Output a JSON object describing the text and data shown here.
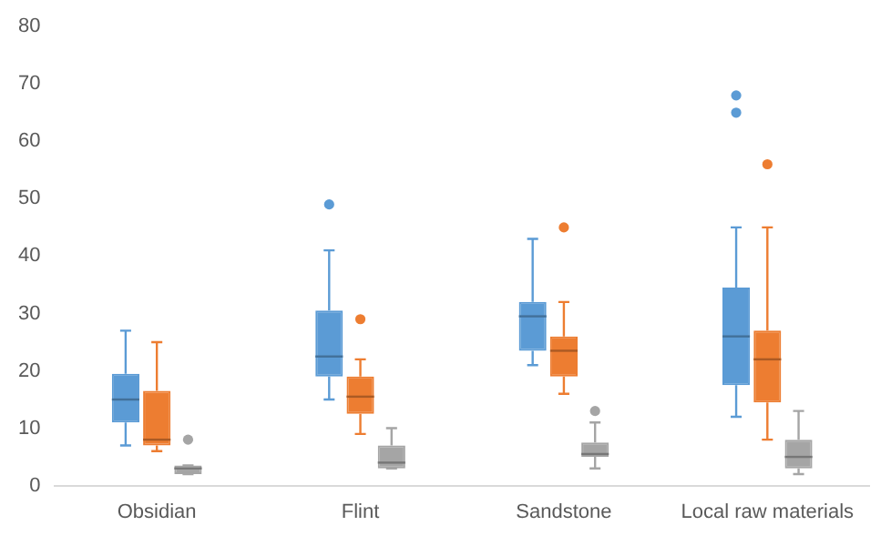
{
  "chart_data": {
    "type": "box",
    "categories": [
      "Obsidian",
      "Flint",
      "Sandstone",
      "Local raw materials"
    ],
    "series": [
      {
        "color": "#5b9bd5",
        "boxes": [
          {
            "low": 7,
            "q1": 11,
            "median": 15,
            "q3": 19.5,
            "high": 27
          },
          {
            "low": 15,
            "q1": 19,
            "median": 22.5,
            "q3": 30.5,
            "high": 41,
            "outliers": [
              49
            ]
          },
          {
            "low": 21,
            "q1": 23.5,
            "median": 29.5,
            "q3": 32,
            "high": 43
          },
          {
            "low": 12,
            "q1": 17.5,
            "median": 26,
            "q3": 34.5,
            "high": 45,
            "outliers": [
              65,
              68
            ]
          }
        ]
      },
      {
        "color": "#ed7d31",
        "boxes": [
          {
            "low": 6,
            "q1": 7,
            "median": 8,
            "q3": 16.5,
            "high": 25
          },
          {
            "low": 9,
            "q1": 12.5,
            "median": 15.5,
            "q3": 19,
            "high": 22,
            "outliers": [
              29
            ]
          },
          {
            "low": 16,
            "q1": 19,
            "median": 23.5,
            "q3": 26,
            "high": 32,
            "outliers": [
              45
            ]
          },
          {
            "low": 8,
            "q1": 14.5,
            "median": 22,
            "q3": 27,
            "high": 45,
            "outliers": [
              56
            ]
          }
        ]
      },
      {
        "color": "#a5a5a5",
        "boxes": [
          {
            "low": 2,
            "q1": 2,
            "median": 3,
            "q3": 3.5,
            "high": 3.5,
            "outliers": [
              8
            ]
          },
          {
            "low": 3,
            "q1": 3,
            "median": 4,
            "q3": 7,
            "high": 10
          },
          {
            "low": 3,
            "q1": 5,
            "median": 5.5,
            "q3": 7.5,
            "high": 11,
            "outliers": [
              13
            ]
          },
          {
            "low": 2,
            "q1": 3,
            "median": 5,
            "q3": 8,
            "high": 13
          }
        ]
      }
    ],
    "ylim": [
      0,
      80
    ],
    "yticks": [
      0,
      10,
      20,
      30,
      40,
      50,
      60,
      70,
      80
    ],
    "grid": false
  }
}
